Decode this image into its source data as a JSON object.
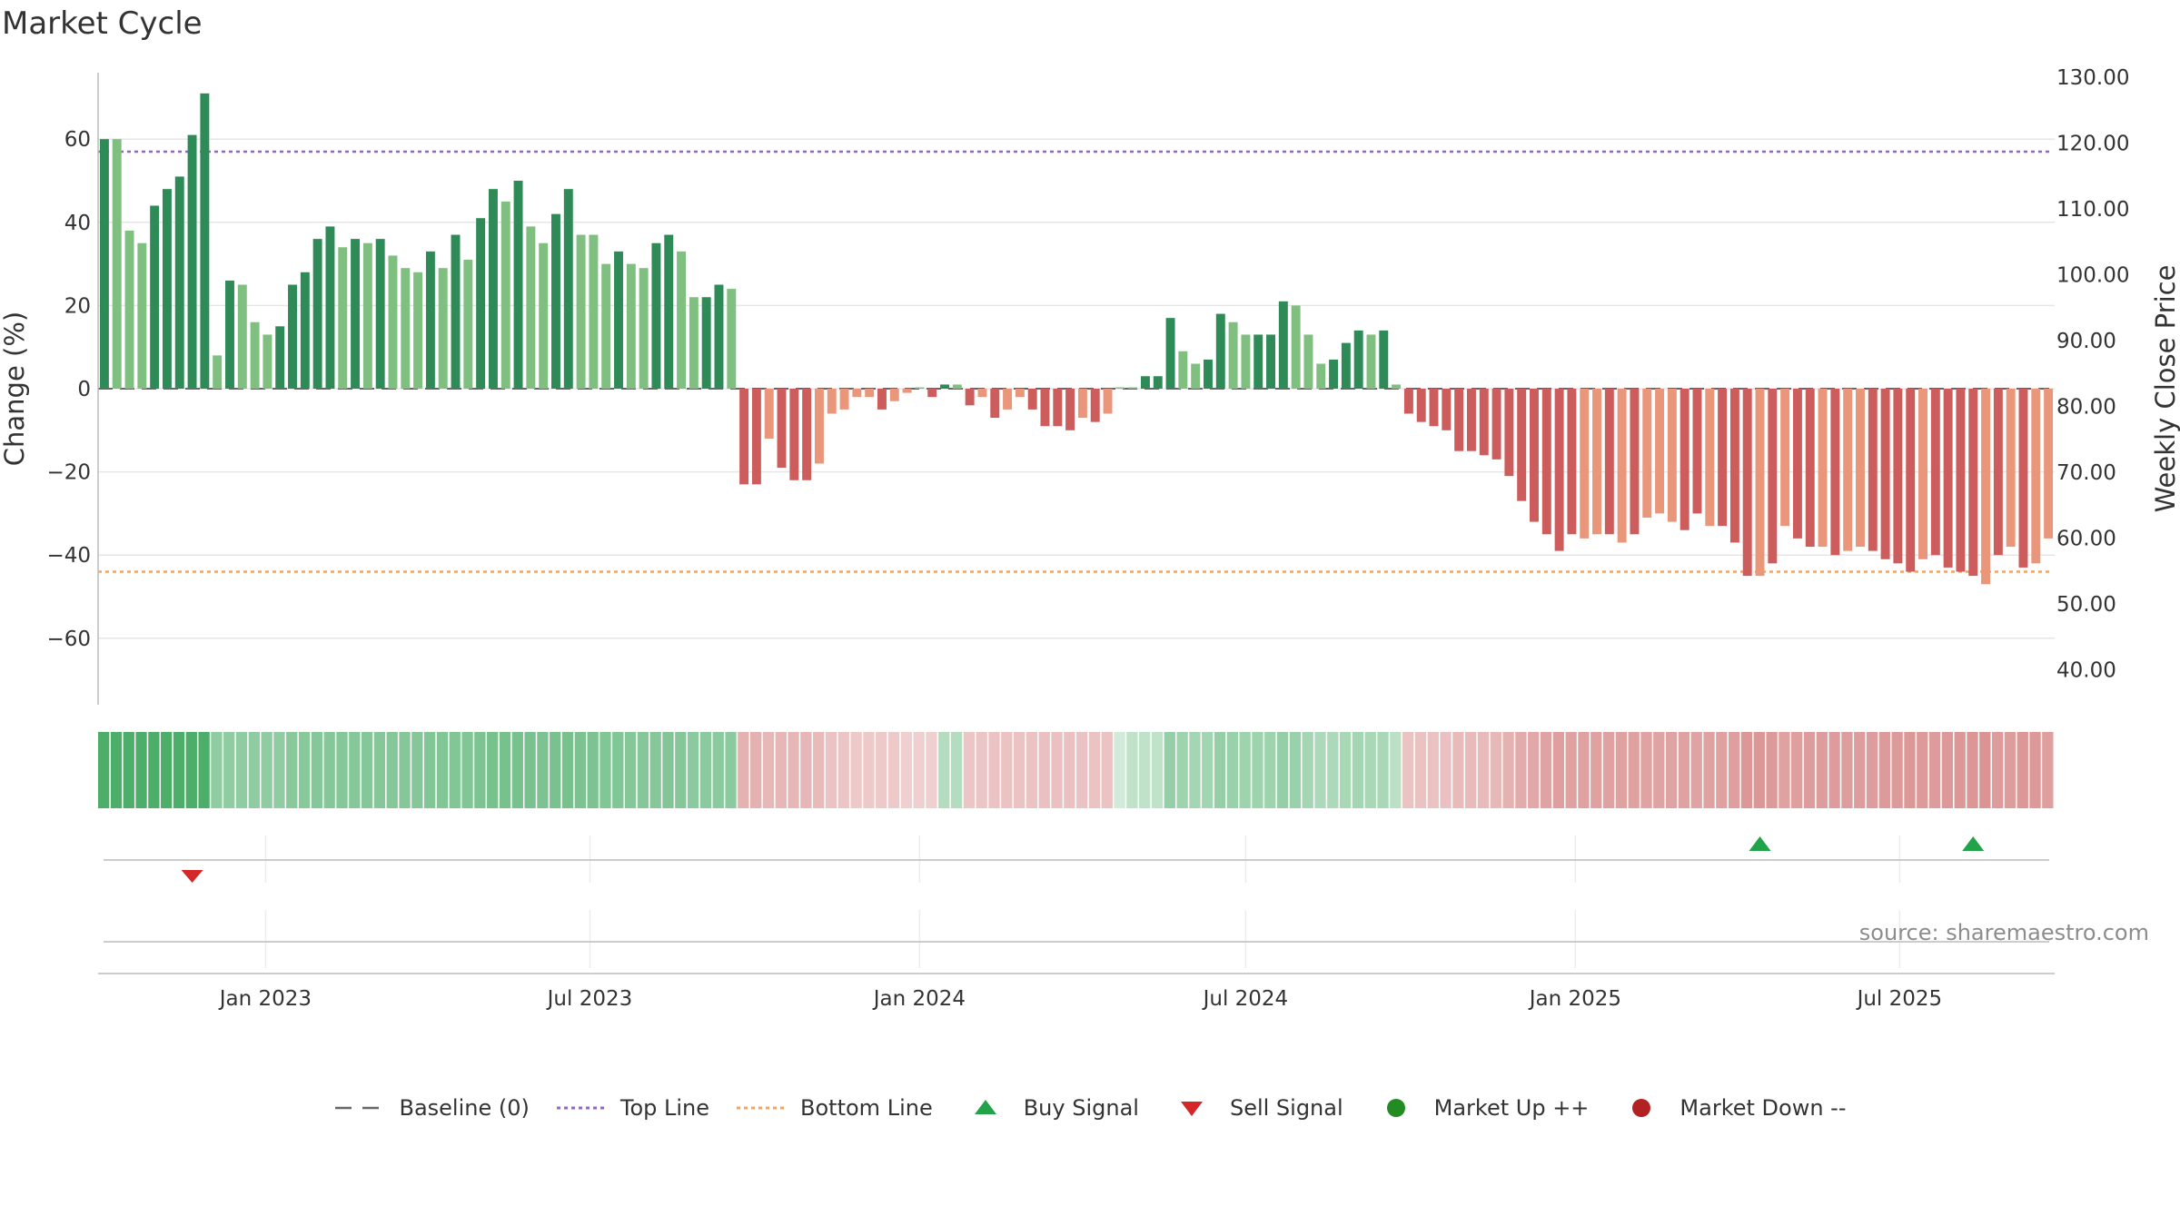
{
  "title": "Market Cycle",
  "source": "source: sharemaestro.com",
  "colors": {
    "up_strong": "#2e8b57",
    "up_weak": "#7fbf7f",
    "down_strong": "#cd5c5c",
    "down_weak": "#e9967a",
    "top_line": "#9467bd",
    "bottom_line": "#f4a460",
    "baseline": "#666666",
    "buy": "#22a34a",
    "sell": "#d62728",
    "market_up": "#228b22",
    "market_down": "#b22222"
  },
  "chart_data": {
    "type": "bar",
    "x_start": "2022-10-03",
    "x_interval_days": 7,
    "values": [
      60,
      60,
      38,
      35,
      44,
      48,
      51,
      61,
      71,
      8,
      26,
      25,
      16,
      13,
      15,
      25,
      28,
      36,
      39,
      34,
      36,
      35,
      36,
      32,
      29,
      28,
      33,
      29,
      37,
      31,
      41,
      48,
      45,
      50,
      39,
      35,
      42,
      48,
      37,
      37,
      30,
      33,
      30,
      29,
      35,
      37,
      33,
      22,
      22,
      25,
      24,
      -23,
      -23,
      -12,
      -19,
      -22,
      -22,
      -18,
      -6,
      -5,
      -2,
      -2,
      -5,
      -3,
      -1,
      0,
      -2,
      1,
      1,
      -4,
      -2,
      -7,
      -5,
      -2,
      -5,
      -9,
      -9,
      -10,
      -7,
      -8,
      -6,
      0,
      0,
      3,
      3,
      17,
      9,
      6,
      7,
      18,
      16,
      13,
      13,
      13,
      21,
      20,
      13,
      6,
      7,
      11,
      14,
      13,
      14,
      1,
      -6,
      -8,
      -9,
      -10,
      -15,
      -15,
      -16,
      -17,
      -21,
      -27,
      -32,
      -35,
      -39,
      -35,
      -36,
      -35,
      -35,
      -37,
      -35,
      -31,
      -30,
      -32,
      -34,
      -30,
      -33,
      -33,
      -37,
      -45,
      -45,
      -42,
      -33,
      -36,
      -38,
      -38,
      -40,
      -39,
      -38,
      -39,
      -41,
      -42,
      -44,
      -41,
      -40,
      -43,
      -44,
      -45,
      -47,
      -40,
      -38,
      -43,
      -42,
      -36
    ],
    "shade": [
      "s",
      "w",
      "w",
      "w",
      "s",
      "s",
      "s",
      "s",
      "s",
      "w",
      "s",
      "w",
      "w",
      "w",
      "s",
      "s",
      "s",
      "s",
      "s",
      "w",
      "s",
      "w",
      "s",
      "w",
      "w",
      "w",
      "s",
      "w",
      "s",
      "w",
      "s",
      "s",
      "w",
      "s",
      "w",
      "w",
      "s",
      "s",
      "w",
      "w",
      "w",
      "s",
      "w",
      "w",
      "s",
      "s",
      "w",
      "w",
      "s",
      "s",
      "w",
      "s",
      "s",
      "w",
      "s",
      "s",
      "s",
      "w",
      "w",
      "w",
      "w",
      "w",
      "s",
      "w",
      "w",
      "w",
      "s",
      "s",
      "w",
      "s",
      "w",
      "s",
      "w",
      "w",
      "s",
      "s",
      "s",
      "s",
      "w",
      "s",
      "w",
      "w",
      "w",
      "s",
      "s",
      "s",
      "w",
      "w",
      "s",
      "s",
      "w",
      "w",
      "s",
      "s",
      "s",
      "w",
      "w",
      "w",
      "s",
      "s",
      "s",
      "w",
      "s",
      "w",
      "s",
      "s",
      "s",
      "s",
      "s",
      "s",
      "s",
      "s",
      "s",
      "s",
      "s",
      "s",
      "s",
      "s",
      "w",
      "w",
      "s",
      "w",
      "s",
      "w",
      "w",
      "w",
      "s",
      "s",
      "w",
      "s",
      "s",
      "s",
      "w",
      "s",
      "w",
      "s",
      "s",
      "w",
      "s",
      "w",
      "w",
      "s",
      "s",
      "s",
      "s",
      "w",
      "s",
      "s",
      "s",
      "s",
      "w",
      "s",
      "w",
      "s",
      "w",
      "w"
    ],
    "left_axis": {
      "label": "Change (%)",
      "ticks": [
        "60",
        "40",
        "20",
        "0",
        "−20",
        "−40",
        "−60"
      ]
    },
    "right_axis": {
      "label": "Weekly Close Price",
      "ticks": [
        "130.00",
        "120.00",
        "110.00",
        "100.00",
        "90.00",
        "80.00",
        "70.00",
        "60.00",
        "50.00",
        "40.00"
      ]
    },
    "x_ticks": [
      "Jan 2023",
      "Jul 2023",
      "Jan 2024",
      "Jul 2024",
      "Jan 2025",
      "Jul 2025"
    ],
    "top_line": 57,
    "bottom_line": -44,
    "buy_signals": [
      "2025-04-14",
      "2025-08-11"
    ],
    "sell_signals": [
      "2022-11-21"
    ],
    "legend": [
      "Baseline (0)",
      "Top Line",
      "Bottom Line",
      "Buy Signal",
      "Sell Signal",
      "Market Up ++",
      "Market Down --"
    ],
    "heat_strip": [
      1,
      1,
      1,
      1,
      1,
      1,
      1,
      1,
      1,
      0.55,
      0.55,
      0.55,
      0.55,
      0.55,
      0.55,
      0.6,
      0.6,
      0.62,
      0.62,
      0.62,
      0.62,
      0.62,
      0.62,
      0.62,
      0.62,
      0.62,
      0.65,
      0.65,
      0.65,
      0.65,
      0.68,
      0.72,
      0.72,
      0.72,
      0.7,
      0.68,
      0.7,
      0.72,
      0.68,
      0.68,
      0.65,
      0.65,
      0.62,
      0.62,
      0.62,
      0.64,
      0.62,
      0.58,
      0.58,
      0.58,
      0.58,
      -0.45,
      -0.45,
      -0.4,
      -0.42,
      -0.42,
      -0.42,
      -0.38,
      -0.3,
      -0.28,
      -0.25,
      -0.25,
      -0.25,
      -0.25,
      -0.2,
      -0.2,
      -0.2,
      0.3,
      0.3,
      -0.28,
      -0.28,
      -0.3,
      -0.3,
      -0.3,
      -0.3,
      -0.33,
      -0.33,
      -0.33,
      -0.3,
      -0.3,
      -0.3,
      0.1,
      0.22,
      0.22,
      0.22,
      0.5,
      0.45,
      0.4,
      0.42,
      0.5,
      0.48,
      0.45,
      0.45,
      0.45,
      0.5,
      0.48,
      0.4,
      0.35,
      0.35,
      0.38,
      0.4,
      0.38,
      0.38,
      0.25,
      -0.3,
      -0.32,
      -0.32,
      -0.33,
      -0.38,
      -0.38,
      -0.38,
      -0.4,
      -0.45,
      -0.5,
      -0.55,
      -0.58,
      -0.62,
      -0.6,
      -0.6,
      -0.6,
      -0.6,
      -0.6,
      -0.6,
      -0.58,
      -0.58,
      -0.58,
      -0.6,
      -0.58,
      -0.6,
      -0.6,
      -0.62,
      -0.68,
      -0.68,
      -0.66,
      -0.6,
      -0.62,
      -0.63,
      -0.63,
      -0.65,
      -0.64,
      -0.63,
      -0.64,
      -0.66,
      -0.66,
      -0.68,
      -0.66,
      -0.65,
      -0.67,
      -0.68,
      -0.7,
      -0.72,
      -0.65,
      -0.64,
      -0.68,
      -0.67,
      -0.62
    ]
  }
}
